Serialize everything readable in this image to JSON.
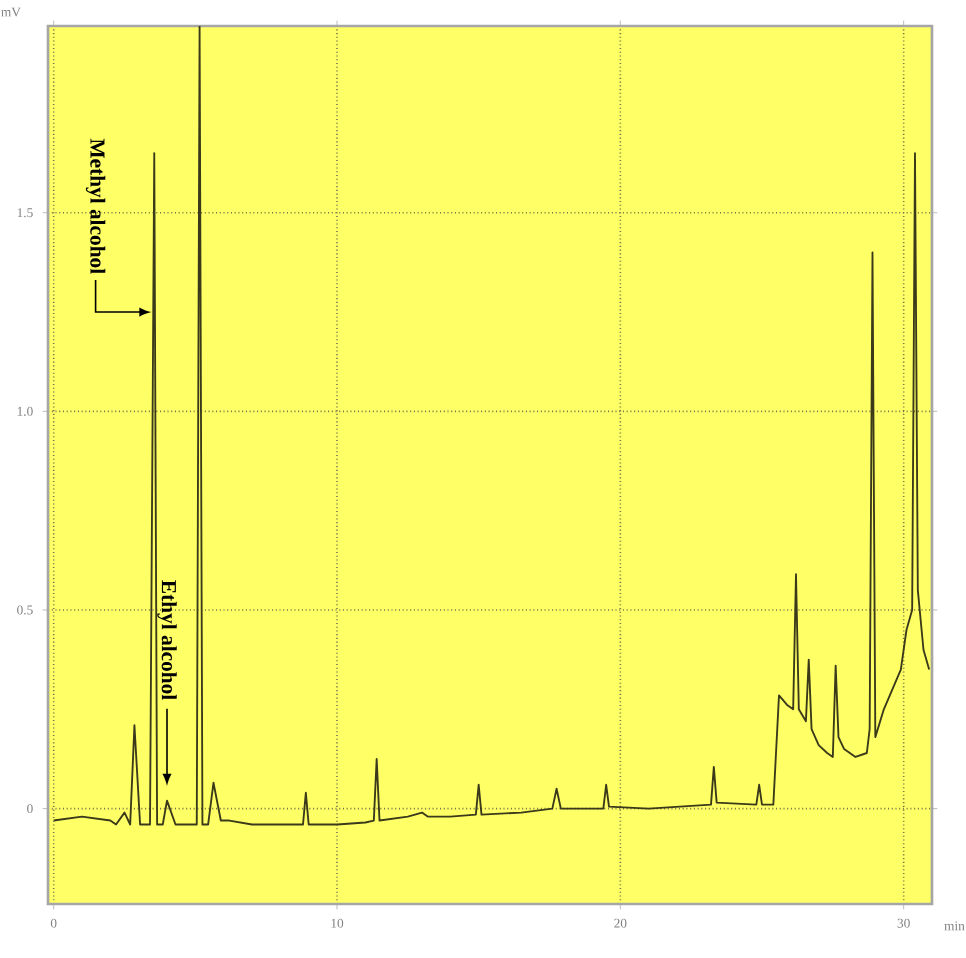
{
  "chart_data": {
    "type": "line",
    "xlabel": "min",
    "ylabel": "mV",
    "xlim": [
      -0.2,
      31.0
    ],
    "ylim": [
      -0.24,
      1.97
    ],
    "xticks": [
      0,
      10,
      20,
      30
    ],
    "yticks": [
      0,
      {
        "value": 0.5,
        "label": "0.5"
      },
      {
        "value": 1.0,
        "label": "1.0"
      },
      {
        "value": 1.5,
        "label": "1.5"
      }
    ],
    "grid": true,
    "series": [
      {
        "color": "#3a3a1a",
        "x": [
          0.0,
          1.0,
          2.0,
          2.2,
          2.5,
          2.7,
          2.85,
          3.05,
          3.4,
          3.55,
          3.65,
          3.85,
          4.0,
          4.3,
          5.05,
          5.15,
          5.25,
          5.45,
          5.64,
          5.9,
          6.2,
          7.0,
          8.0,
          8.8,
          8.9,
          9.0,
          10.0,
          11.0,
          11.3,
          11.4,
          11.5,
          12.5,
          13.0,
          13.2,
          14.0,
          14.9,
          15.0,
          15.1,
          16.5,
          17.6,
          17.75,
          17.9,
          19.4,
          19.5,
          19.6,
          21.0,
          23.2,
          23.3,
          23.4,
          24.8,
          24.9,
          25.0,
          25.4,
          25.6,
          25.9,
          26.1,
          26.2,
          26.3,
          26.55,
          26.65,
          26.75,
          27.0,
          27.3,
          27.5,
          27.6,
          27.7,
          27.9,
          28.3,
          28.7,
          28.8,
          28.9,
          29.0,
          29.3,
          29.6,
          29.9,
          30.1,
          30.3,
          30.4,
          30.5,
          30.7,
          30.9
        ],
        "values": [
          -0.03,
          -0.02,
          -0.03,
          -0.04,
          -0.01,
          -0.04,
          0.21,
          -0.04,
          -0.04,
          1.65,
          -0.04,
          -0.04,
          0.02,
          -0.04,
          -0.04,
          1.97,
          -0.04,
          -0.04,
          0.065,
          -0.03,
          -0.03,
          -0.04,
          -0.04,
          -0.04,
          0.04,
          -0.04,
          -0.04,
          -0.035,
          -0.03,
          0.125,
          -0.03,
          -0.02,
          -0.01,
          -0.02,
          -0.02,
          -0.015,
          0.06,
          -0.015,
          -0.01,
          0.0,
          0.05,
          0.0,
          0.0,
          0.06,
          0.005,
          0.0,
          0.01,
          0.105,
          0.015,
          0.01,
          0.06,
          0.01,
          0.01,
          0.285,
          0.26,
          0.25,
          0.59,
          0.25,
          0.22,
          0.375,
          0.2,
          0.16,
          0.14,
          0.13,
          0.36,
          0.18,
          0.15,
          0.13,
          0.14,
          0.2,
          1.4,
          0.18,
          0.25,
          0.3,
          0.35,
          0.45,
          0.5,
          1.65,
          0.55,
          0.4,
          0.35
        ]
      }
    ],
    "annotations": [
      {
        "text": "Methyl alcohol",
        "x": 3.55,
        "y": 1.25
      },
      {
        "text": "Ethyl alcohol",
        "x": 4.0,
        "y": 0.05
      }
    ]
  }
}
